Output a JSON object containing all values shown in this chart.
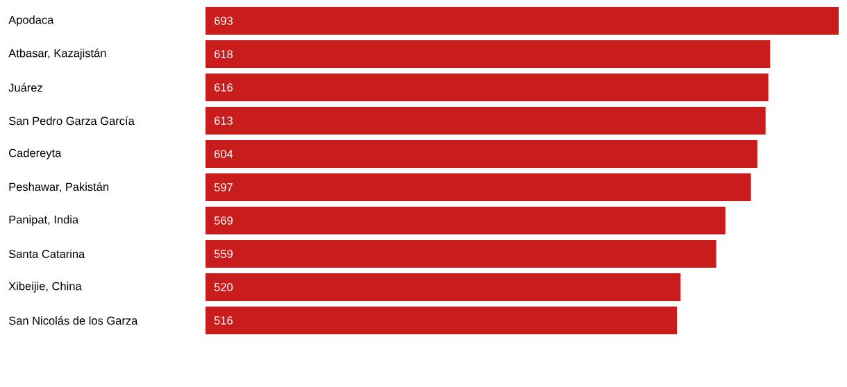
{
  "chart_data": {
    "type": "bar",
    "orientation": "horizontal",
    "categories": [
      "Apodaca",
      "Atbasar, Kazajistán",
      "Juárez",
      "San Pedro Garza García",
      "Cadereyta",
      "Peshawar, Pakistán",
      "Panipat, India",
      "Santa Catarina",
      "Xibeijie, China",
      "San Nicolás de los Garza"
    ],
    "values": [
      693,
      618,
      616,
      613,
      604,
      597,
      569,
      559,
      520,
      516
    ],
    "color": "#c91d1d",
    "data_labels": true
  }
}
